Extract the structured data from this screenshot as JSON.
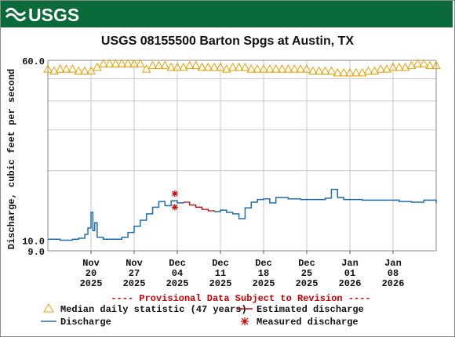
{
  "banner": {
    "logo_text": "USGS",
    "logo_icon": "usgs-wave-icon",
    "color": "#0b6a3a"
  },
  "chart_data": {
    "type": "line",
    "title": "USGS 08155500 Barton Spgs at Austin, TX",
    "ylabel": "Discharge, cubic feet per second",
    "xlabel": "",
    "y_scale": "log",
    "ylim": [
      9.0,
      60.0
    ],
    "y_ticks": [
      "60.0",
      "10.0",
      "9.0"
    ],
    "y_ticks_values": [
      60.0,
      10.0,
      9.0
    ],
    "xlim": [
      "2025-11-13",
      "2026-01-15"
    ],
    "x_ticks": [
      {
        "date": "2025-11-20",
        "label": [
          "Nov",
          "20",
          "2025"
        ]
      },
      {
        "date": "2025-11-27",
        "label": [
          "Nov",
          "27",
          "2025"
        ]
      },
      {
        "date": "2025-12-04",
        "label": [
          "Dec",
          "04",
          "2025"
        ]
      },
      {
        "date": "2025-12-11",
        "label": [
          "Dec",
          "11",
          "2025"
        ]
      },
      {
        "date": "2025-12-18",
        "label": [
          "Dec",
          "18",
          "2025"
        ]
      },
      {
        "date": "2025-12-25",
        "label": [
          "Dec",
          "25",
          "2025"
        ]
      },
      {
        "date": "2026-01-01",
        "label": [
          "Jan",
          "01",
          "2026"
        ]
      },
      {
        "date": "2026-01-08",
        "label": [
          "Jan",
          "08",
          "2026"
        ]
      }
    ],
    "grid": true,
    "provisional_note": "---- Provisional Data Subject to Revision ----",
    "colors": {
      "median": "#e8a000",
      "discharge": "#1f6db3",
      "estimated": "#c40000",
      "measured": "#c40000",
      "note": "#cc0000"
    },
    "legend": [
      {
        "marker": "triangle",
        "label": "Median daily statistic (47 years)",
        "icon": "triangle-marker-icon"
      },
      {
        "marker": "line-red",
        "label": "Estimated discharge",
        "icon": "red-line-icon"
      },
      {
        "marker": "line-blue",
        "label": "Discharge",
        "icon": "blue-line-icon"
      },
      {
        "marker": "asterisk",
        "label": "Measured discharge",
        "icon": "asterisk-marker-icon"
      }
    ],
    "series": [
      {
        "name": "Median daily statistic (47 years)",
        "marker": "triangle",
        "x": [
          "2025-11-13",
          "2025-11-14",
          "2025-11-15",
          "2025-11-16",
          "2025-11-17",
          "2025-11-18",
          "2025-11-19",
          "2025-11-20",
          "2025-11-21",
          "2025-11-22",
          "2025-11-23",
          "2025-11-24",
          "2025-11-25",
          "2025-11-26",
          "2025-11-27",
          "2025-11-28",
          "2025-11-29",
          "2025-11-30",
          "2025-12-01",
          "2025-12-02",
          "2025-12-03",
          "2025-12-04",
          "2025-12-05",
          "2025-12-06",
          "2025-12-07",
          "2025-12-08",
          "2025-12-09",
          "2025-12-10",
          "2025-12-11",
          "2025-12-12",
          "2025-12-13",
          "2025-12-14",
          "2025-12-15",
          "2025-12-16",
          "2025-12-17",
          "2025-12-18",
          "2025-12-19",
          "2025-12-20",
          "2025-12-21",
          "2025-12-22",
          "2025-12-23",
          "2025-12-24",
          "2025-12-25",
          "2025-12-26",
          "2025-12-27",
          "2025-12-28",
          "2025-12-29",
          "2025-12-30",
          "2025-12-31",
          "2026-01-01",
          "2026-01-02",
          "2026-01-03",
          "2026-01-04",
          "2026-01-05",
          "2026-01-06",
          "2026-01-07",
          "2026-01-08",
          "2026-01-09",
          "2026-01-10",
          "2026-01-11",
          "2026-01-12",
          "2026-01-13",
          "2026-01-14",
          "2026-01-15"
        ],
        "values": [
          55,
          54,
          55,
          55,
          55,
          54,
          54,
          54,
          56,
          58,
          58,
          58,
          58,
          58,
          58,
          58,
          55,
          57,
          57,
          57,
          56,
          56,
          56,
          57,
          57,
          56,
          56,
          56,
          56,
          55,
          56,
          56,
          56,
          55,
          55,
          55,
          55,
          55,
          55,
          55,
          55,
          55,
          55,
          54,
          54,
          54,
          54,
          53,
          53,
          53,
          53,
          53,
          54,
          54,
          55,
          55,
          56,
          56,
          56,
          57,
          58,
          58,
          57,
          57
        ]
      },
      {
        "name": "Discharge",
        "x": [
          "2025-11-13",
          "2025-11-15",
          "2025-11-17",
          "2025-11-18",
          "2025-11-19",
          "2025-11-19.5",
          "2025-11-20",
          "2025-11-20.3",
          "2025-11-20.6",
          "2025-11-21",
          "2025-11-22",
          "2025-11-24",
          "2025-11-25",
          "2025-11-26",
          "2025-11-27",
          "2025-11-28",
          "2025-11-29",
          "2025-11-30",
          "2025-12-01",
          "2025-12-02",
          "2025-12-03",
          "2025-12-04",
          "2025-12-05"
        ],
        "values": [
          10.1,
          10.0,
          10.1,
          10.2,
          10.6,
          11.3,
          13.2,
          11.0,
          11.9,
          10.3,
          10.1,
          10.1,
          10.3,
          10.8,
          11.5,
          12.2,
          13.0,
          13.9,
          14.7,
          14.1,
          14.8,
          14.5,
          14.6
        ]
      },
      {
        "name": "Estimated discharge",
        "x": [
          "2025-12-05",
          "2025-12-06",
          "2025-12-07",
          "2025-12-08",
          "2025-12-09",
          "2025-12-10"
        ],
        "values": [
          14.6,
          14.2,
          13.9,
          13.6,
          13.4,
          13.3
        ]
      },
      {
        "name": "Discharge",
        "x": [
          "2025-12-10",
          "2025-12-11",
          "2025-12-12",
          "2025-12-13",
          "2025-12-14",
          "2025-12-15",
          "2025-12-16",
          "2025-12-17",
          "2025-12-18",
          "2025-12-19",
          "2025-12-20",
          "2025-12-22",
          "2025-12-24",
          "2025-12-26",
          "2025-12-28",
          "2025-12-29",
          "2025-12-30",
          "2025-12-31",
          "2026-01-01",
          "2026-01-03",
          "2026-01-05",
          "2026-01-07",
          "2026-01-09",
          "2026-01-11",
          "2026-01-13",
          "2026-01-15"
        ],
        "values": [
          13.3,
          13.5,
          13.2,
          13.0,
          12.4,
          13.8,
          14.6,
          15.0,
          15.1,
          14.5,
          15.3,
          15.1,
          15.0,
          15.0,
          15.2,
          16.6,
          15.3,
          15.0,
          15.0,
          14.9,
          14.9,
          14.9,
          14.7,
          14.6,
          14.9,
          14.5
        ]
      }
    ],
    "measured": {
      "name": "Measured discharge",
      "x": [
        "2025-12-03.6",
        "2025-12-03.6"
      ],
      "values": [
        15.9,
        13.9
      ]
    }
  }
}
